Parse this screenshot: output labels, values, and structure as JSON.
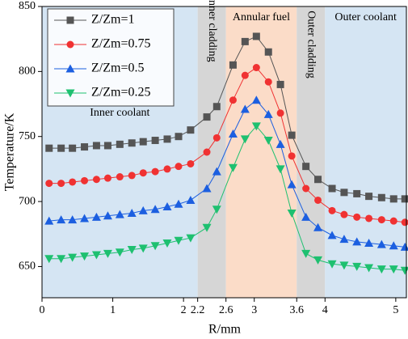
{
  "chart_data": {
    "type": "line",
    "x_label": "R/mm",
    "y_label": "Temperature/K",
    "xlim": [
      0,
      5.15
    ],
    "ylim": [
      626,
      850
    ],
    "xticks": [
      0,
      1,
      2,
      2.2,
      2.6,
      3,
      3.6,
      4,
      5
    ],
    "yticks": [
      650,
      700,
      750,
      800,
      850
    ],
    "legend": "upper left",
    "regions": [
      {
        "label": "Inner coolant",
        "from": 0,
        "to": 2.2,
        "color": "#d5e5f3"
      },
      {
        "label": "Inner cladding",
        "from": 2.2,
        "to": 2.6,
        "color": "#d6d6d6"
      },
      {
        "label": "Annular fuel",
        "from": 2.6,
        "to": 3.6,
        "color": "#fbdcc8"
      },
      {
        "label": "Outer cladding",
        "from": 3.6,
        "to": 4,
        "color": "#d6d6d6"
      },
      {
        "label": "Outer coolant",
        "from": 4,
        "to": 5.15,
        "color": "#d5e5f3"
      }
    ],
    "x": [
      0.1,
      0.27,
      0.43,
      0.6,
      0.77,
      0.93,
      1.1,
      1.27,
      1.43,
      1.6,
      1.77,
      1.93,
      2.1,
      2.33,
      2.47,
      2.7,
      2.87,
      3.03,
      3.2,
      3.37,
      3.53,
      3.73,
      3.9,
      4.1,
      4.27,
      4.45,
      4.62,
      4.8,
      4.97,
      5.13
    ],
    "series": [
      {
        "name": "Z/Zm=1",
        "color": "#555555",
        "marker": "square",
        "values": [
          741,
          741,
          741,
          742,
          743,
          743,
          744,
          745,
          746,
          747,
          748,
          750,
          755,
          765,
          773,
          805,
          823,
          827,
          815,
          790,
          751,
          727,
          717,
          710,
          707,
          706,
          704,
          703,
          702,
          702
        ]
      },
      {
        "name": "Z/Zm=0.75",
        "color": "#f03232",
        "marker": "circle",
        "values": [
          714,
          714,
          715,
          716,
          717,
          718,
          719,
          720,
          722,
          723,
          725,
          727,
          729,
          738,
          749,
          778,
          797,
          803,
          792,
          768,
          735,
          710,
          701,
          693,
          690,
          688,
          687,
          686,
          685,
          684
        ]
      },
      {
        "name": "Z/Zm=0.5",
        "color": "#1c5fe0",
        "marker": "triangle-up",
        "values": [
          685,
          686,
          686,
          687,
          688,
          689,
          690,
          691,
          693,
          694,
          696,
          698,
          701,
          710,
          723,
          752,
          771,
          778,
          767,
          744,
          713,
          688,
          680,
          674,
          671,
          669,
          668,
          667,
          666,
          665
        ]
      },
      {
        "name": "Z/Zm=0.25",
        "color": "#1ec070",
        "marker": "triangle-down",
        "values": [
          656,
          656,
          657,
          658,
          659,
          660,
          661,
          663,
          664,
          666,
          668,
          670,
          672,
          680,
          694,
          726,
          748,
          758,
          747,
          725,
          691,
          660,
          655,
          652,
          651,
          650,
          649,
          648,
          648,
          647
        ]
      }
    ]
  }
}
